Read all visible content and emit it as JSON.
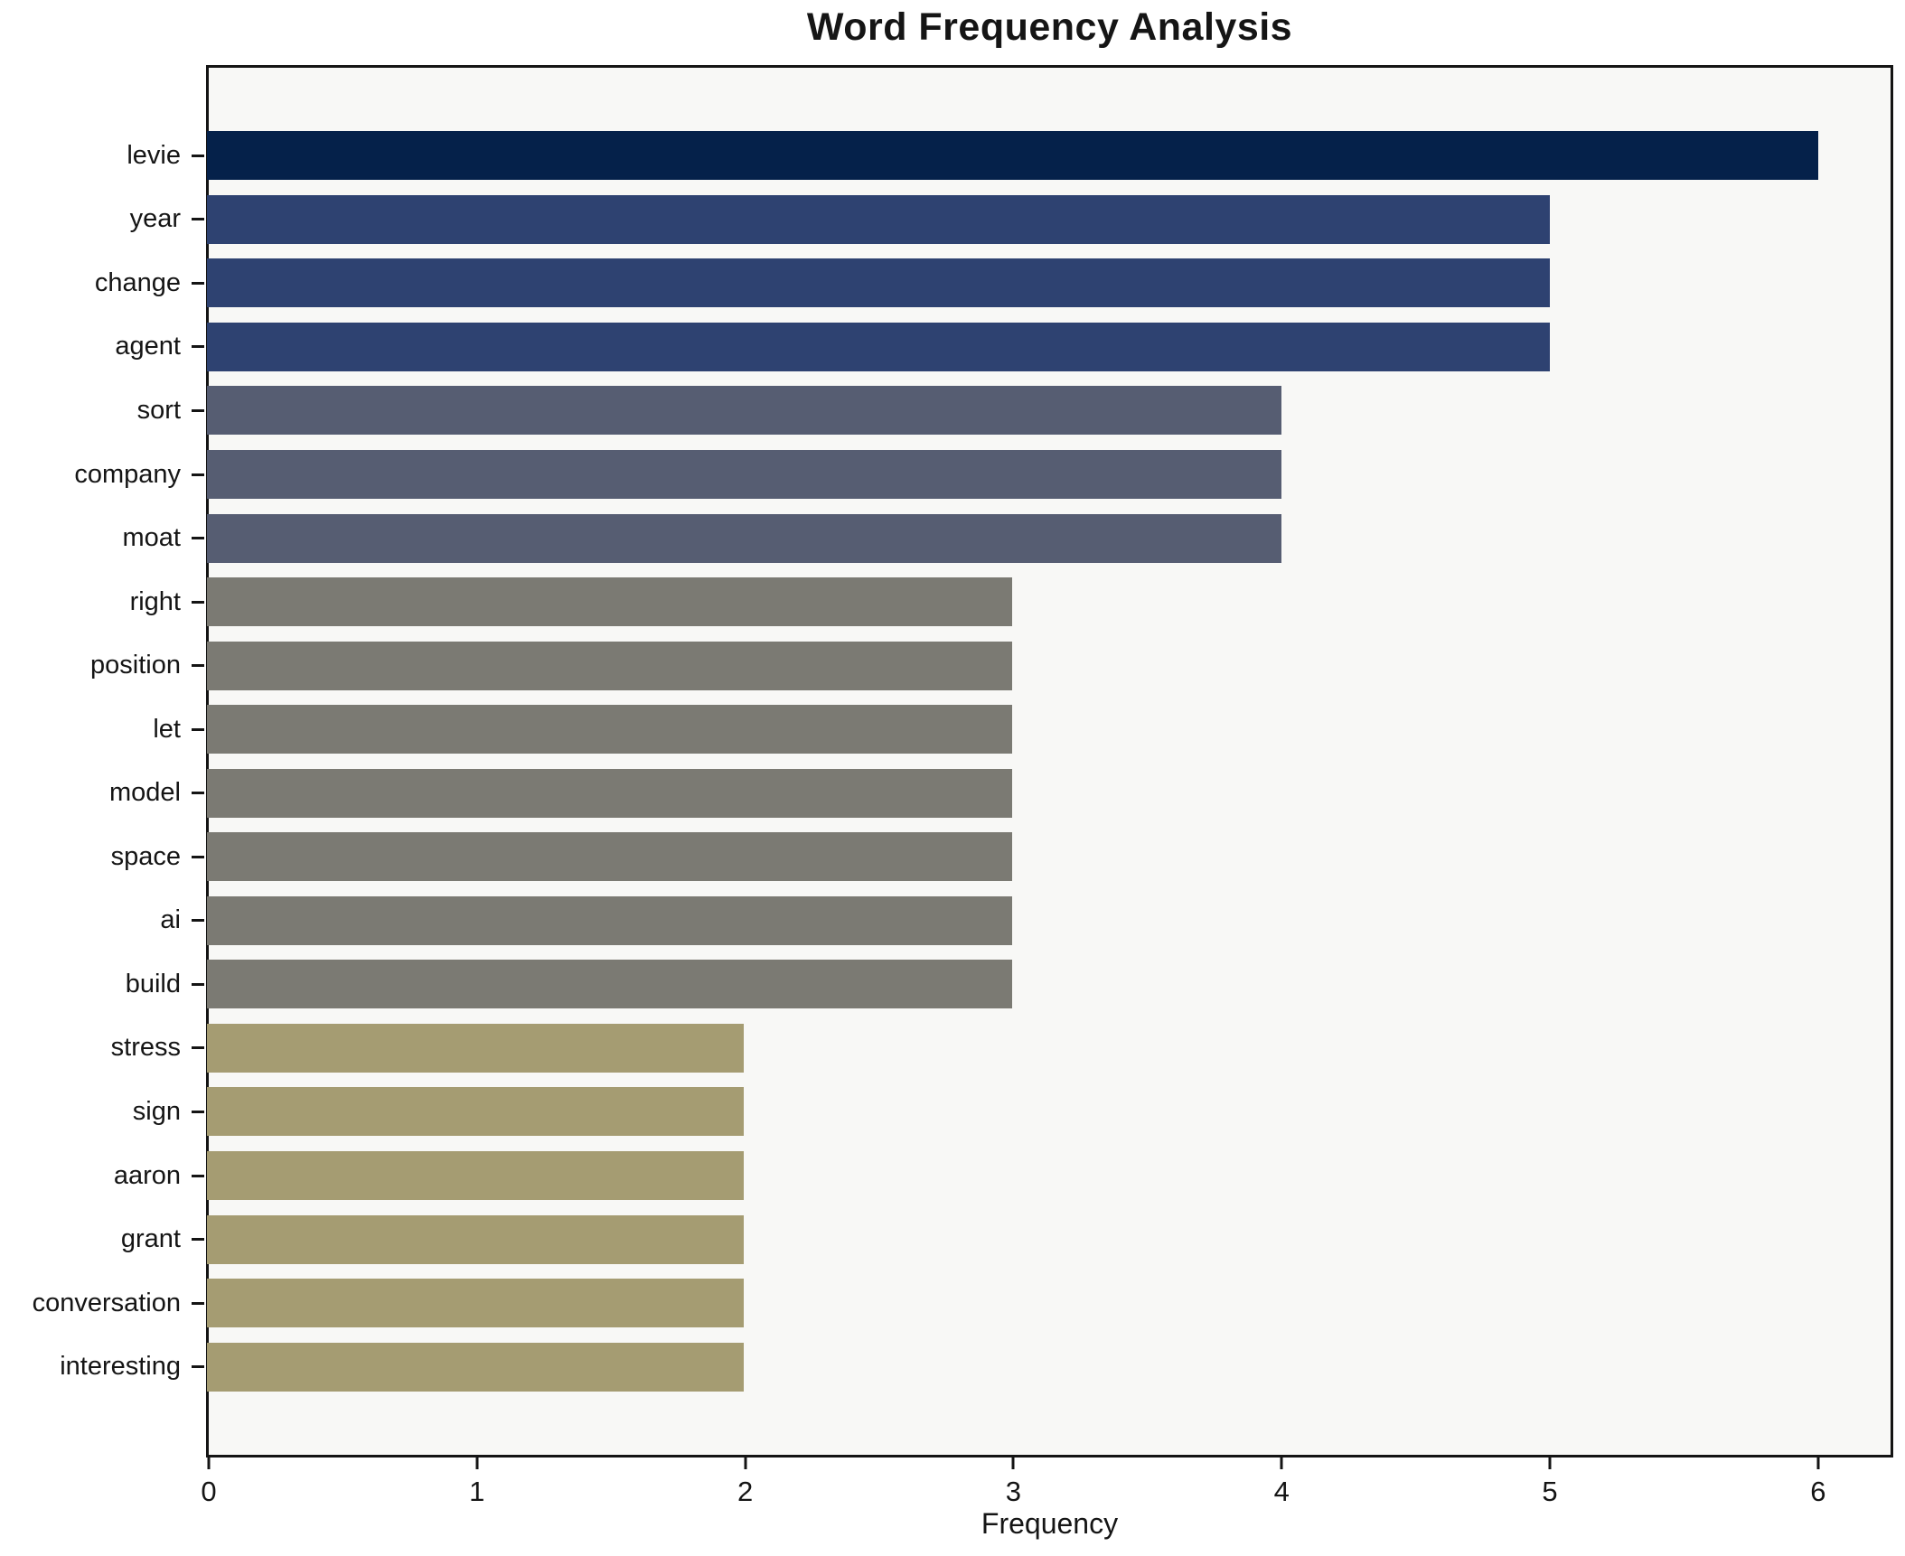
{
  "chart_data": {
    "type": "bar",
    "orientation": "horizontal",
    "title": "Word Frequency Analysis",
    "xlabel": "Frequency",
    "ylabel": "",
    "categories": [
      "levie",
      "year",
      "change",
      "agent",
      "sort",
      "company",
      "moat",
      "right",
      "position",
      "let",
      "model",
      "space",
      "ai",
      "build",
      "stress",
      "sign",
      "aaron",
      "grant",
      "conversation",
      "interesting"
    ],
    "values": [
      6,
      5,
      5,
      5,
      4,
      4,
      4,
      3,
      3,
      3,
      3,
      3,
      3,
      3,
      2,
      2,
      2,
      2,
      2,
      2
    ],
    "x_ticks": [
      0,
      1,
      2,
      3,
      4,
      5,
      6
    ],
    "xlim": [
      0,
      6.27
    ],
    "grid": false,
    "legend": null,
    "colors_by_value": {
      "6": "#05214a",
      "5": "#2e4271",
      "4": "#565d72",
      "3": "#7b7a73",
      "2": "#a59c72"
    },
    "plot_bg": "#f8f8f6",
    "figure_bg": "#ffffff",
    "spine_color": "#141414"
  }
}
